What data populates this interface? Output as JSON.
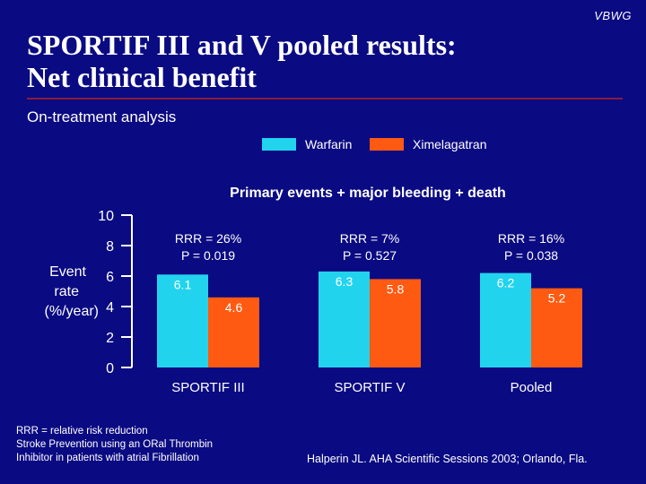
{
  "corner_tag": "VBWG",
  "header": {
    "title_line1": "SPORTIF III and V pooled results:",
    "title_line2": "Net clinical benefit",
    "subtitle": "On-treatment analysis"
  },
  "colors": {
    "background": "#0a0a82",
    "warfarin": "#22d3ee",
    "ximelagatran": "#ff5a12",
    "rule": "#8c1a3a"
  },
  "chart_data": {
    "type": "bar",
    "title": "Primary events + major bleeding + death",
    "ylabel": [
      "Event",
      "rate",
      "(%/year)"
    ],
    "ylim": [
      0,
      10
    ],
    "yticks": [
      0,
      2,
      4,
      6,
      8,
      10
    ],
    "grid": false,
    "legend_position": "top",
    "categories": [
      "SPORTIF III",
      "SPORTIF V",
      "Pooled"
    ],
    "series": [
      {
        "name": "Warfarin",
        "values": [
          6.1,
          6.3,
          6.2
        ]
      },
      {
        "name": "Ximelagatran",
        "values": [
          4.6,
          5.8,
          5.2
        ]
      }
    ],
    "data_labels": [
      [
        "6.1",
        "6.3",
        "6.2"
      ],
      [
        "4.6",
        "5.8",
        "5.2"
      ]
    ],
    "annotations": [
      {
        "rrr": "RRR = 26%",
        "p": "P = 0.019"
      },
      {
        "rrr": "RRR = 7%",
        "p": "P = 0.527"
      },
      {
        "rrr": "RRR = 16%",
        "p": "P = 0.038"
      }
    ]
  },
  "footnotes": {
    "abbrev1": "RRR = relative risk reduction",
    "abbrev2": "Stroke Prevention using an ORal Thrombin",
    "abbrev3": "Inhibitor in patients with atrial Fibrillation",
    "reference": "Halperin JL. AHA Scientific Sessions 2003; Orlando, Fla."
  }
}
